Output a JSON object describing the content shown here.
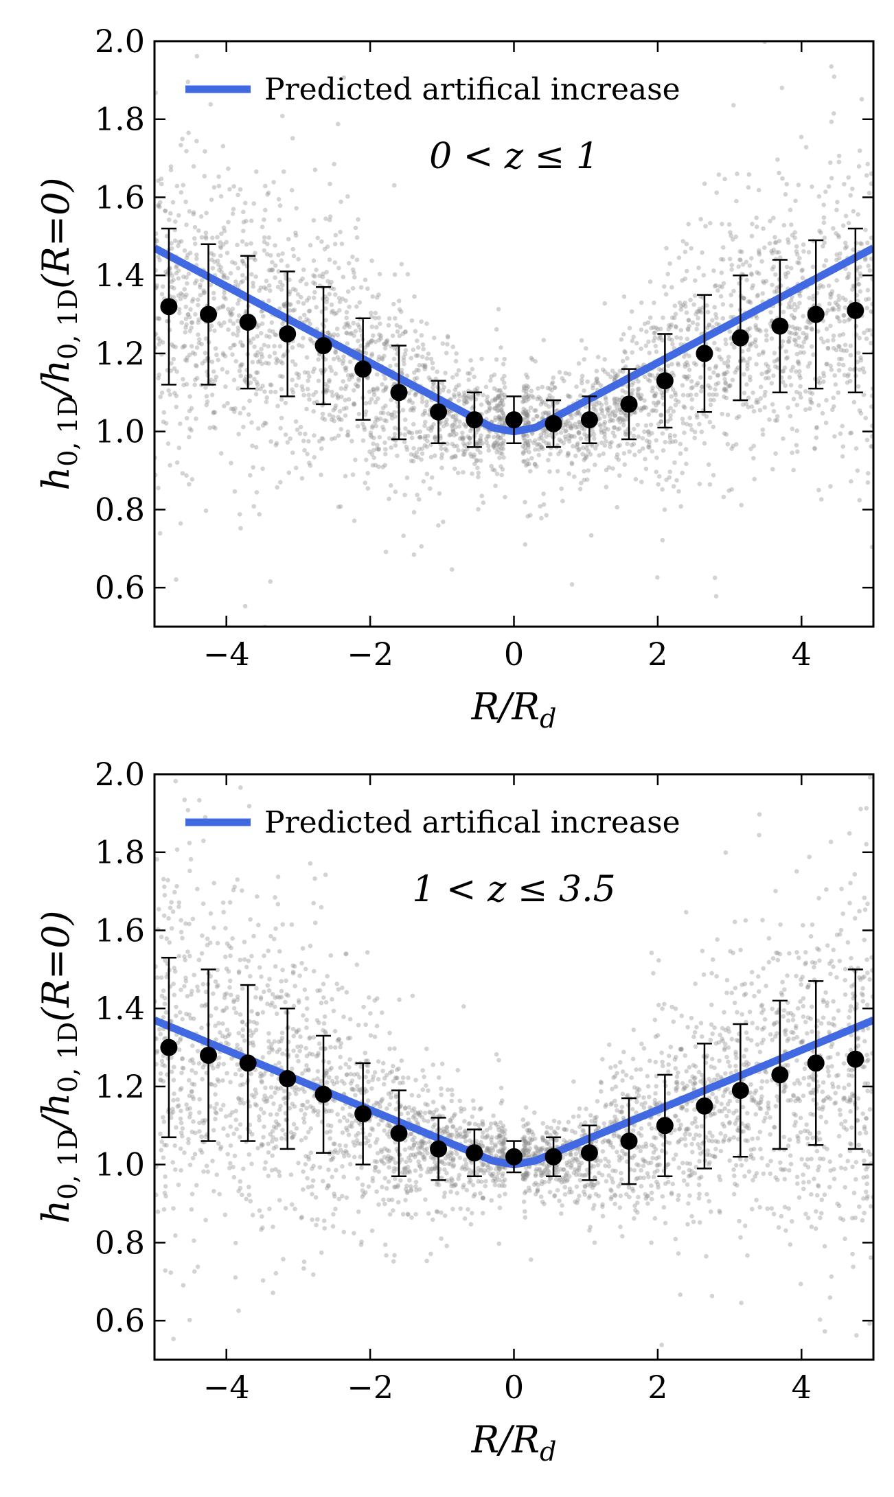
{
  "chart_data": [
    {
      "type": "scatter",
      "panel": "top",
      "annotation": "0 < z ≤ 1",
      "xlabel": "R/R_d",
      "ylabel": "h_{0,1D}/h_{0,1D}(R=0)",
      "xlim": [
        -5,
        5
      ],
      "ylim": [
        0.5,
        2.0
      ],
      "xticks": [
        -4,
        -2,
        0,
        2,
        4
      ],
      "xtick_labels": [
        "−4",
        "−2",
        "0",
        "2",
        "4"
      ],
      "yticks": [
        0.6,
        0.8,
        1.0,
        1.2,
        1.4,
        1.6,
        1.8,
        2.0
      ],
      "ytick_labels": [
        "0.6",
        "0.8",
        "1.0",
        "1.2",
        "1.4",
        "1.6",
        "1.8",
        "2.0"
      ],
      "legend": {
        "label": "Predicted artifical increase",
        "location": "upper-left",
        "color": "#4169E1"
      },
      "predicted_line": {
        "x": [
          -5,
          -0.3,
          0,
          0.3,
          5
        ],
        "y": [
          1.47,
          1.01,
          1.0,
          1.01,
          1.47
        ]
      },
      "binned_points": {
        "x": [
          -4.8,
          -4.25,
          -3.7,
          -3.15,
          -2.65,
          -2.1,
          -1.6,
          -1.05,
          -0.55,
          0.0,
          0.55,
          1.05,
          1.6,
          2.1,
          2.65,
          3.15,
          3.7,
          4.2,
          4.75
        ],
        "y": [
          1.32,
          1.3,
          1.28,
          1.25,
          1.22,
          1.16,
          1.1,
          1.05,
          1.03,
          1.03,
          1.02,
          1.03,
          1.07,
          1.13,
          1.2,
          1.24,
          1.27,
          1.3,
          1.31
        ],
        "yerr": [
          0.2,
          0.18,
          0.17,
          0.16,
          0.15,
          0.13,
          0.12,
          0.08,
          0.07,
          0.06,
          0.06,
          0.06,
          0.09,
          0.12,
          0.15,
          0.16,
          0.17,
          0.19,
          0.21
        ]
      },
      "scatter_cloud": {
        "color": "#8c8c8c",
        "n_points": 3200,
        "description": "background sample cloud"
      }
    },
    {
      "type": "scatter",
      "panel": "bottom",
      "annotation": "1 < z ≤ 3.5",
      "xlabel": "R/R_d",
      "ylabel": "h_{0,1D}/h_{0,1D}(R=0)",
      "xlim": [
        -5,
        5
      ],
      "ylim": [
        0.5,
        2.0
      ],
      "xticks": [
        -4,
        -2,
        0,
        2,
        4
      ],
      "xtick_labels": [
        "−4",
        "−2",
        "0",
        "2",
        "4"
      ],
      "yticks": [
        0.6,
        0.8,
        1.0,
        1.2,
        1.4,
        1.6,
        1.8,
        2.0
      ],
      "ytick_labels": [
        "0.6",
        "0.8",
        "1.0",
        "1.2",
        "1.4",
        "1.6",
        "1.8",
        "2.0"
      ],
      "legend": {
        "label": "Predicted artifical increase",
        "location": "upper-left",
        "color": "#4169E1"
      },
      "predicted_line": {
        "x": [
          -5,
          -0.3,
          0,
          0.3,
          5
        ],
        "y": [
          1.37,
          1.01,
          1.0,
          1.01,
          1.37
        ]
      },
      "binned_points": {
        "x": [
          -4.8,
          -4.25,
          -3.7,
          -3.15,
          -2.65,
          -2.1,
          -1.6,
          -1.05,
          -0.55,
          0.0,
          0.55,
          1.05,
          1.6,
          2.1,
          2.65,
          3.15,
          3.7,
          4.2,
          4.75
        ],
        "y": [
          1.3,
          1.28,
          1.26,
          1.22,
          1.18,
          1.13,
          1.08,
          1.04,
          1.03,
          1.02,
          1.02,
          1.03,
          1.06,
          1.1,
          1.15,
          1.19,
          1.23,
          1.26,
          1.27
        ],
        "yerr": [
          0.23,
          0.22,
          0.2,
          0.18,
          0.15,
          0.13,
          0.11,
          0.08,
          0.06,
          0.04,
          0.05,
          0.07,
          0.11,
          0.13,
          0.16,
          0.17,
          0.19,
          0.21,
          0.23
        ]
      },
      "scatter_cloud": {
        "color": "#8c8c8c",
        "n_points": 3200,
        "description": "background sample cloud"
      }
    }
  ]
}
